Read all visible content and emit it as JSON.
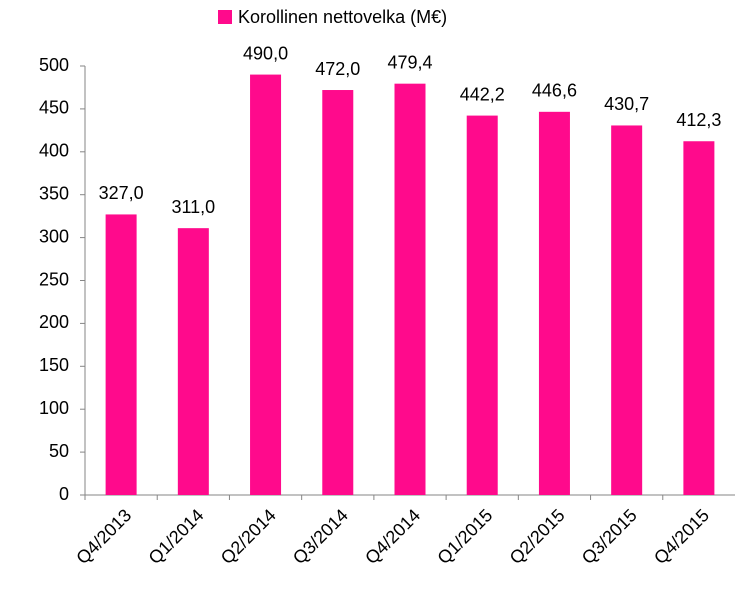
{
  "chart_data": {
    "type": "bar",
    "categories": [
      "Q4/2013",
      "Q1/2014",
      "Q2/2014",
      "Q3/2014",
      "Q4/2014",
      "Q1/2015",
      "Q2/2015",
      "Q3/2015",
      "Q4/2015"
    ],
    "series": [
      {
        "name": "Korollinen nettovelka (M€)",
        "color": "#ff0a8c",
        "values": [
          327.0,
          311.0,
          490.0,
          472.0,
          479.4,
          442.2,
          446.6,
          430.7,
          412.3
        ],
        "value_labels": [
          "327,0",
          "311,0",
          "490,0",
          "472,0",
          "479,4",
          "442,2",
          "446,6",
          "430,7",
          "412,3"
        ]
      }
    ],
    "ylim": [
      0,
      500
    ],
    "yticks": [
      0,
      50,
      100,
      150,
      200,
      250,
      300,
      350,
      400,
      450,
      500
    ],
    "grid": false,
    "legend": "top"
  }
}
